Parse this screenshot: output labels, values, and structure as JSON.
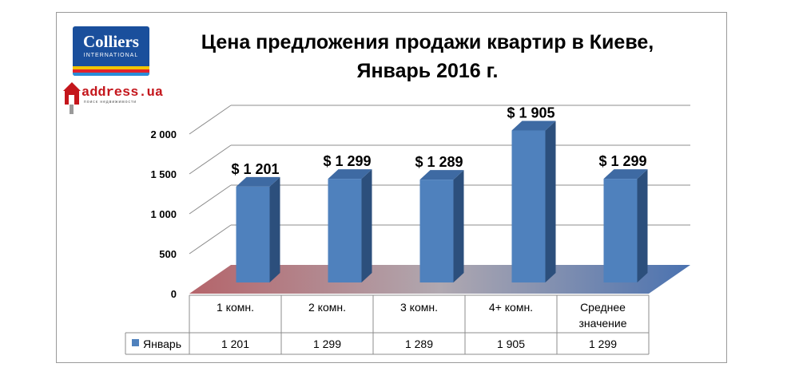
{
  "logos": {
    "colliers": {
      "name": "Colliers",
      "sub": "INTERNATIONAL"
    },
    "address": {
      "word": "address.ua",
      "tag": "поиск недвижимости"
    }
  },
  "chart_data": {
    "type": "bar",
    "title": "Цена предложения продажи квартир в Киеве,",
    "subtitle": "Январь 2016 г.",
    "categories": [
      "1 комн.",
      "2 комн.",
      "3 комн.",
      "4+ комн.",
      "Среднее значение"
    ],
    "series": [
      {
        "name": "Январь",
        "values": [
          1201,
          1299,
          1289,
          1905,
          1299
        ],
        "color": "#4f81bd"
      }
    ],
    "data_labels": [
      "$ 1 201",
      "$ 1 299",
      "$ 1 289",
      "$ 1 905",
      "$ 1 299"
    ],
    "table_values": [
      "1 201",
      "1 299",
      "1 289",
      "1 905",
      "1 299"
    ],
    "yticks": [
      {
        "value": 0,
        "label": "0"
      },
      {
        "value": 500,
        "label": "500"
      },
      {
        "value": 1000,
        "label": "1 000"
      },
      {
        "value": 1500,
        "label": "1 500"
      },
      {
        "value": 2000,
        "label": "2 000"
      }
    ],
    "ylim": [
      0,
      2000
    ],
    "grid": true,
    "legend": "data table",
    "three_d": true
  }
}
